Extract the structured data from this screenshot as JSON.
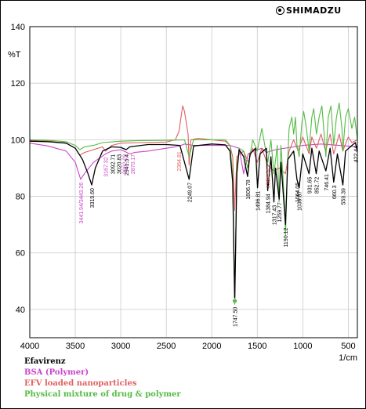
{
  "brand": {
    "name": "SHIMADZU",
    "icon": "shimadzu-logo-icon"
  },
  "chart_data": {
    "type": "line",
    "ylabel": "%T",
    "xlabel": "1/cm",
    "xlim": [
      4000,
      400
    ],
    "ylim": [
      30,
      140
    ],
    "xticks": [
      4000,
      3500,
      3000,
      2500,
      2000,
      1500,
      1000,
      500
    ],
    "yticks": [
      40,
      60,
      80,
      100,
      120,
      140
    ],
    "grid": true,
    "legend_placement": "below",
    "series": [
      {
        "name": "Efavirenz",
        "color": "#000000",
        "points": [
          [
            4000,
            99.5
          ],
          [
            3800,
            99.3
          ],
          [
            3600,
            98.8
          ],
          [
            3500,
            97
          ],
          [
            3420,
            93
          ],
          [
            3360,
            88
          ],
          [
            3319.6,
            84
          ],
          [
            3280,
            90
          ],
          [
            3200,
            96
          ],
          [
            3100,
            97.5
          ],
          [
            3000,
            97.3
          ],
          [
            2941.5,
            96.5
          ],
          [
            2900,
            97.5
          ],
          [
            2700,
            98.3
          ],
          [
            2500,
            98.3
          ],
          [
            2350,
            98
          ],
          [
            2249.07,
            86
          ],
          [
            2200,
            97.8
          ],
          [
            2000,
            98.5
          ],
          [
            1850,
            98.2
          ],
          [
            1800,
            96
          ],
          [
            1770,
            85
          ],
          [
            1747.5,
            42
          ],
          [
            1725,
            88
          ],
          [
            1700,
            96.5
          ],
          [
            1650,
            94
          ],
          [
            1606.78,
            87
          ],
          [
            1580,
            95
          ],
          [
            1520,
            97
          ],
          [
            1496.81,
            83
          ],
          [
            1470,
            95
          ],
          [
            1400,
            97
          ],
          [
            1384.9,
            82
          ],
          [
            1350,
            94
          ],
          [
            1317.43,
            78
          ],
          [
            1300,
            90
          ],
          [
            1259.77,
            79
          ],
          [
            1240,
            92
          ],
          [
            1190.12,
            70
          ],
          [
            1165,
            93
          ],
          [
            1100,
            96
          ],
          [
            1064.05,
            86
          ],
          [
            1039.87,
            83
          ],
          [
            1000,
            95
          ],
          [
            931.65,
            88
          ],
          [
            900,
            97
          ],
          [
            852,
            88
          ],
          [
            820,
            96
          ],
          [
            746.4,
            89
          ],
          [
            700,
            97
          ],
          [
            660.3,
            85
          ],
          [
            620,
            95
          ],
          [
            559.39,
            84
          ],
          [
            530,
            96
          ],
          [
            460,
            98
          ],
          [
            422.44,
            99
          ],
          [
            400,
            96
          ]
        ]
      },
      {
        "name": "BSA (Polymer)",
        "color": "#cc44cc",
        "points": [
          [
            4000,
            98.8
          ],
          [
            3800,
            97.8
          ],
          [
            3600,
            96
          ],
          [
            3500,
            92
          ],
          [
            3441,
            86
          ],
          [
            3400,
            88
          ],
          [
            3300,
            92
          ],
          [
            3167,
            95
          ],
          [
            3100,
            96
          ],
          [
            3000,
            96.5
          ],
          [
            2900,
            95
          ],
          [
            2850,
            95.5
          ],
          [
            2700,
            96
          ],
          [
            2500,
            97
          ],
          [
            2400,
            97.5
          ],
          [
            2340,
            98
          ],
          [
            2300,
            98.5
          ],
          [
            2200,
            98
          ],
          [
            2000,
            98
          ],
          [
            1800,
            98
          ],
          [
            1700,
            97
          ],
          [
            1650,
            88
          ],
          [
            1600,
            95
          ],
          [
            1540,
            96
          ],
          [
            1450,
            97
          ],
          [
            1400,
            95.5
          ],
          [
            1300,
            96.5
          ],
          [
            1100,
            97.5
          ],
          [
            1000,
            98
          ],
          [
            800,
            98.5
          ],
          [
            600,
            98
          ],
          [
            400,
            97.5
          ]
        ]
      },
      {
        "name": "EFV loaded nanoparticles",
        "color": "#e06060",
        "points": [
          [
            4000,
            99.8
          ],
          [
            3800,
            99.5
          ],
          [
            3600,
            98.8
          ],
          [
            3500,
            97
          ],
          [
            3450,
            94.5
          ],
          [
            3400,
            95.5
          ],
          [
            3200,
            97.5
          ],
          [
            3167,
            96
          ],
          [
            3100,
            98
          ],
          [
            3000,
            98.8
          ],
          [
            2800,
            99
          ],
          [
            2500,
            99.2
          ],
          [
            2400,
            100
          ],
          [
            2360,
            103
          ],
          [
            2320,
            112
          ],
          [
            2300,
            110
          ],
          [
            2280,
            106
          ],
          [
            2260,
            102
          ],
          [
            2249,
            91
          ],
          [
            2230,
            100
          ],
          [
            2150,
            100.5
          ],
          [
            2000,
            100
          ],
          [
            1850,
            99.5
          ],
          [
            1800,
            98
          ],
          [
            1770,
            94
          ],
          [
            1748,
            75
          ],
          [
            1725,
            94
          ],
          [
            1650,
            96
          ],
          [
            1600,
            92
          ],
          [
            1550,
            97
          ],
          [
            1500,
            92
          ],
          [
            1450,
            97
          ],
          [
            1384,
            91
          ],
          [
            1320,
            89
          ],
          [
            1260,
            90
          ],
          [
            1190,
            88
          ],
          [
            1150,
            96
          ],
          [
            1100,
            100
          ],
          [
            1050,
            96
          ],
          [
            1000,
            101
          ],
          [
            930,
            95
          ],
          [
            900,
            101
          ],
          [
            850,
            97
          ],
          [
            800,
            102
          ],
          [
            750,
            96
          ],
          [
            700,
            102
          ],
          [
            660,
            95
          ],
          [
            600,
            102
          ],
          [
            560,
            96
          ],
          [
            500,
            101
          ],
          [
            460,
            99
          ],
          [
            400,
            100
          ]
        ]
      },
      {
        "name": "Physical mixture of drug & polymer",
        "color": "#55bb44",
        "points": [
          [
            4000,
            100
          ],
          [
            3800,
            99.8
          ],
          [
            3600,
            99.3
          ],
          [
            3500,
            98
          ],
          [
            3450,
            96.5
          ],
          [
            3400,
            97.5
          ],
          [
            3300,
            98
          ],
          [
            3200,
            99
          ],
          [
            3000,
            99.5
          ],
          [
            2800,
            99.7
          ],
          [
            2500,
            99.8
          ],
          [
            2300,
            100
          ],
          [
            2249,
            94
          ],
          [
            2200,
            100
          ],
          [
            2000,
            100
          ],
          [
            1850,
            100
          ],
          [
            1800,
            98
          ],
          [
            1770,
            88
          ],
          [
            1747.5,
            43
          ],
          [
            1725,
            90
          ],
          [
            1700,
            97
          ],
          [
            1650,
            96
          ],
          [
            1606,
            90
          ],
          [
            1550,
            100
          ],
          [
            1500,
            96
          ],
          [
            1450,
            104
          ],
          [
            1384,
            92
          ],
          [
            1350,
            100
          ],
          [
            1317,
            88
          ],
          [
            1280,
            98
          ],
          [
            1260,
            78
          ],
          [
            1240,
            98
          ],
          [
            1220,
            88
          ],
          [
            1200,
            77
          ],
          [
            1190,
            66
          ],
          [
            1170,
            90
          ],
          [
            1150,
            104
          ],
          [
            1120,
            108
          ],
          [
            1100,
            102
          ],
          [
            1080,
            108
          ],
          [
            1064,
            98
          ],
          [
            1040,
            94
          ],
          [
            1010,
            106
          ],
          [
            990,
            110
          ],
          [
            960,
            104
          ],
          [
            931,
            96
          ],
          [
            900,
            108
          ],
          [
            880,
            111
          ],
          [
            850,
            102
          ],
          [
            820,
            108
          ],
          [
            790,
            112
          ],
          [
            760,
            100
          ],
          [
            746,
            94
          ],
          [
            720,
            108
          ],
          [
            690,
            112
          ],
          [
            660,
            98
          ],
          [
            630,
            108
          ],
          [
            600,
            113
          ],
          [
            570,
            104
          ],
          [
            559,
            96
          ],
          [
            530,
            108
          ],
          [
            500,
            111
          ],
          [
            460,
            104
          ],
          [
            430,
            108
          ],
          [
            400,
            100
          ]
        ]
      }
    ],
    "peak_labels": [
      {
        "text": "3319.60",
        "x": 3319.6,
        "y": 84,
        "color": "#000000"
      },
      {
        "text": "3092.71",
        "x": 3092.7,
        "y": 96,
        "color": "#000000"
      },
      {
        "text": "3020.83",
        "x": 3020.8,
        "y": 96,
        "color": "#000000"
      },
      {
        "text": "2941.5.4",
        "x": 2941.5,
        "y": 96,
        "color": "#000000"
      },
      {
        "text": "2249.07",
        "x": 2249.07,
        "y": 86,
        "color": "#000000"
      },
      {
        "text": "1747.50",
        "x": 1747.5,
        "y": 42,
        "color": "#000000"
      },
      {
        "text": "1606.78",
        "x": 1606.78,
        "y": 87,
        "color": "#000000"
      },
      {
        "text": "1496.81",
        "x": 1496.81,
        "y": 83,
        "color": "#000000"
      },
      {
        "text": "1384.94",
        "x": 1384.94,
        "y": 82,
        "color": "#000000"
      },
      {
        "text": "1317.43",
        "x": 1317.43,
        "y": 78,
        "color": "#000000"
      },
      {
        "text": "1259.77",
        "x": 1259.77,
        "y": 79,
        "color": "#000000"
      },
      {
        "text": "1190.12",
        "x": 1190.12,
        "y": 70,
        "color": "#000000"
      },
      {
        "text": "1064.05",
        "x": 1064.05,
        "y": 86,
        "color": "#000000"
      },
      {
        "text": "1039.87",
        "x": 1039.87,
        "y": 83,
        "color": "#000000"
      },
      {
        "text": "931.65",
        "x": 931.65,
        "y": 88,
        "color": "#000000"
      },
      {
        "text": "852.72",
        "x": 852.72,
        "y": 88,
        "color": "#000000"
      },
      {
        "text": "746.41",
        "x": 746.41,
        "y": 89,
        "color": "#000000"
      },
      {
        "text": "660.3",
        "x": 660.3,
        "y": 85,
        "color": "#000000"
      },
      {
        "text": "559.39",
        "x": 559.39,
        "y": 84,
        "color": "#000000"
      },
      {
        "text": "422.44",
        "x": 422.44,
        "y": 99,
        "color": "#000000"
      },
      {
        "text": "3441.94/3443.26",
        "x": 3441,
        "y": 86,
        "color": "#cc44cc"
      },
      {
        "text": "3167.32",
        "x": 3167,
        "y": 95,
        "color": "#cc44cc"
      },
      {
        "text": "2962.29",
        "x": 2962,
        "y": 96,
        "color": "#cc44cc"
      },
      {
        "text": "2870.17",
        "x": 2870,
        "y": 96,
        "color": "#cc44cc"
      },
      {
        "text": "2364.81",
        "x": 2364.81,
        "y": 97,
        "color": "#e06060"
      },
      {
        "text": "1384.64",
        "x": 1384,
        "y": 91,
        "color": "#e06060"
      }
    ]
  },
  "legend_entries": [
    {
      "label": "Efavirenz",
      "color": "#000000"
    },
    {
      "label": "BSA (Polymer)",
      "color": "#cc44cc"
    },
    {
      "label": "EFV loaded nanoparticles",
      "color": "#e06060"
    },
    {
      "label": "Physical mixture of drug & polymer",
      "color": "#55bb44"
    }
  ]
}
